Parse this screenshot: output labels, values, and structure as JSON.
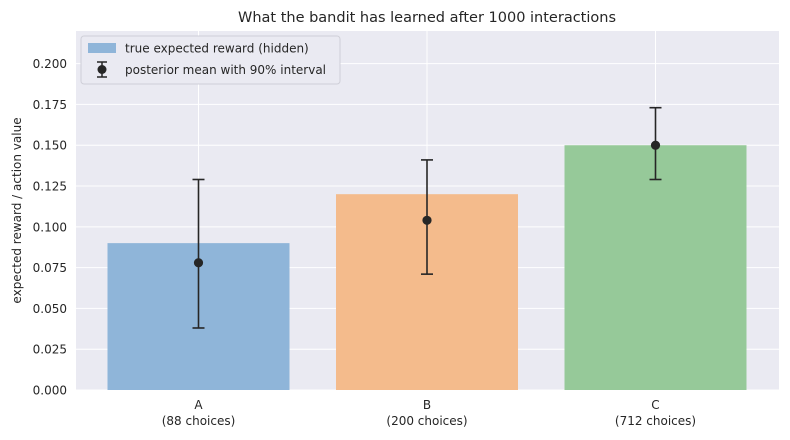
{
  "chart_data": {
    "type": "bar",
    "title": "What the bandit has learned after 1000 interactions",
    "ylabel": "expected reward / action value",
    "xlabel": "",
    "ylim": [
      0,
      0.22
    ],
    "yticks": [
      0.0,
      0.025,
      0.05,
      0.075,
      0.1,
      0.125,
      0.15,
      0.175,
      0.2
    ],
    "ytick_labels": [
      "0.000",
      "0.025",
      "0.050",
      "0.075",
      "0.100",
      "0.125",
      "0.150",
      "0.175",
      "0.200"
    ],
    "grid": true,
    "legend_position": "top-left",
    "categories": [
      {
        "name": "A",
        "sublabel": "(88 choices)"
      },
      {
        "name": "B",
        "sublabel": "(200 choices)"
      },
      {
        "name": "C",
        "sublabel": "(712 choices)"
      }
    ],
    "series": [
      {
        "name": "true expected reward (hidden)",
        "kind": "bar",
        "values": [
          0.09,
          0.12,
          0.15
        ],
        "colors": [
          "#8fb5d9",
          "#f4bb8c",
          "#96c999"
        ]
      },
      {
        "name": "posterior mean with 90% interval",
        "kind": "errorbar",
        "color": "#262626",
        "values": [
          0.078,
          0.104,
          0.15
        ],
        "lower": [
          0.038,
          0.071,
          0.129
        ],
        "upper": [
          0.129,
          0.141,
          0.173
        ]
      }
    ]
  }
}
